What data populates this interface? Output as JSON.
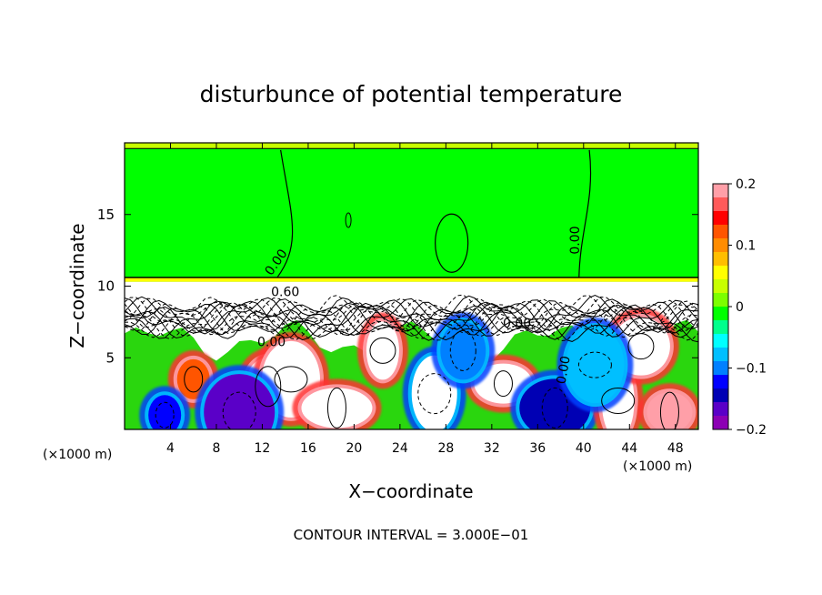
{
  "chart_data": {
    "type": "heatmap",
    "title": "disturbunce of potential temperature",
    "xlabel": "X−coordinate",
    "ylabel": "Z−coordinate",
    "x_unit_left": "(×1000 m)",
    "x_unit_right": "(×1000 m)",
    "footer": "CONTOUR INTERVAL = 3.000E−01",
    "xlim": [
      0,
      50
    ],
    "ylim": [
      0,
      20
    ],
    "x_ticks": [
      {
        "value": 4,
        "label": "4"
      },
      {
        "value": 8,
        "label": "8"
      },
      {
        "value": 12,
        "label": "12"
      },
      {
        "value": 16,
        "label": "16"
      },
      {
        "value": 20,
        "label": "20"
      },
      {
        "value": 24,
        "label": "24"
      },
      {
        "value": 28,
        "label": "28"
      },
      {
        "value": 32,
        "label": "32"
      },
      {
        "value": 36,
        "label": "36"
      },
      {
        "value": 40,
        "label": "40"
      },
      {
        "value": 44,
        "label": "44"
      },
      {
        "value": 48,
        "label": "48"
      }
    ],
    "y_ticks": [
      {
        "value": 5,
        "label": "5"
      },
      {
        "value": 10,
        "label": "10"
      },
      {
        "value": 15,
        "label": "15"
      }
    ],
    "colorbar": {
      "range": [
        -0.2,
        0.2
      ],
      "ticks": [
        {
          "value": 0.2,
          "label": "0.2"
        },
        {
          "value": 0.1,
          "label": "0.1"
        },
        {
          "value": 0,
          "label": "0"
        },
        {
          "value": -0.1,
          "label": "−0.1"
        },
        {
          "value": -0.2,
          "label": "−0.2"
        }
      ],
      "colors": [
        "#ff9fa8",
        "#ff5a5a",
        "#ff0000",
        "#ff5500",
        "#ff8c00",
        "#ffbe00",
        "#ffff00",
        "#c8ff00",
        "#7cff00",
        "#00ff00",
        "#00ff8c",
        "#00ffff",
        "#00bfff",
        "#0080ff",
        "#0000ff",
        "#0000b4",
        "#5a00c8",
        "#8c00b4"
      ]
    },
    "contour_labels": [
      {
        "text": "0.00",
        "x": 13.5,
        "z": 11.5,
        "rotate": -55
      },
      {
        "text": "0.00",
        "x": 39.6,
        "z": 13.2,
        "rotate": -90
      },
      {
        "text": "0.60",
        "x": 14.0,
        "z": 9.3,
        "rotate": 0
      },
      {
        "text": "0.00",
        "x": 12.8,
        "z": 5.8,
        "rotate": 0
      },
      {
        "text": "0.00",
        "x": 38.6,
        "z": 4.1,
        "rotate": -80
      },
      {
        "text": "0.00",
        "x": 34.2,
        "z": 7.1,
        "rotate": 0
      }
    ],
    "fill_regions": {
      "upper_level": {
        "z_range": [
          10.5,
          20
        ],
        "value": 0.0
      },
      "tropopause_band": {
        "z_range": [
          10.3,
          10.6
        ],
        "value": 0.06
      },
      "blobs": [
        {
          "x": 6,
          "z": 3.5,
          "value": 0.12
        },
        {
          "x": 12.5,
          "z": 3.0,
          "value": 0.25
        },
        {
          "x": 14.5,
          "z": 3.5,
          "value": 0.25
        },
        {
          "x": 18.5,
          "z": 1.5,
          "value": 0.25
        },
        {
          "x": 22.5,
          "z": 5.5,
          "value": 0.25
        },
        {
          "x": 27,
          "z": 2.5,
          "value": -0.25
        },
        {
          "x": 33,
          "z": 3.2,
          "value": 0.25
        },
        {
          "x": 37.5,
          "z": 1.5,
          "value": -0.14
        },
        {
          "x": 43,
          "z": 2.0,
          "value": 0.25
        },
        {
          "x": 47.5,
          "z": 1.2,
          "value": 0.18
        },
        {
          "x": 45,
          "z": 5.8,
          "value": 0.25
        },
        {
          "x": 10,
          "z": 1.2,
          "value": -0.16
        },
        {
          "x": 3.5,
          "z": 1.0,
          "value": -0.12
        },
        {
          "x": 29.5,
          "z": 5.5,
          "value": -0.1
        },
        {
          "x": 41,
          "z": 4.5,
          "value": -0.08
        }
      ]
    }
  }
}
